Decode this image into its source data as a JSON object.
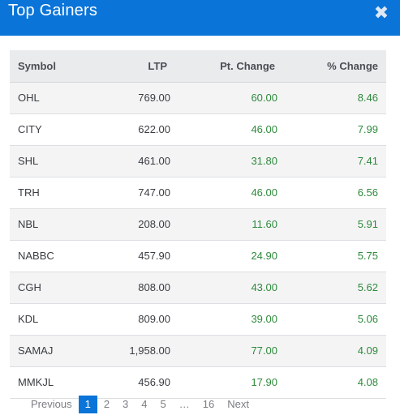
{
  "modal": {
    "title": "Top Gainers",
    "close_glyph": "✖"
  },
  "table": {
    "headers": {
      "symbol": "Symbol",
      "ltp": "LTP",
      "pt_change": "Pt. Change",
      "pct_change": "% Change"
    },
    "rows": [
      {
        "symbol": "OHL",
        "ltp": "769.00",
        "pt_change": "60.00",
        "pct_change": "8.46"
      },
      {
        "symbol": "CITY",
        "ltp": "622.00",
        "pt_change": "46.00",
        "pct_change": "7.99"
      },
      {
        "symbol": "SHL",
        "ltp": "461.00",
        "pt_change": "31.80",
        "pct_change": "7.41"
      },
      {
        "symbol": "TRH",
        "ltp": "747.00",
        "pt_change": "46.00",
        "pct_change": "6.56"
      },
      {
        "symbol": "NBL",
        "ltp": "208.00",
        "pt_change": "11.60",
        "pct_change": "5.91"
      },
      {
        "symbol": "NABBC",
        "ltp": "457.90",
        "pt_change": "24.90",
        "pct_change": "5.75"
      },
      {
        "symbol": "CGH",
        "ltp": "808.00",
        "pt_change": "43.00",
        "pct_change": "5.62"
      },
      {
        "symbol": "KDL",
        "ltp": "809.00",
        "pt_change": "39.00",
        "pct_change": "5.06"
      },
      {
        "symbol": "SAMAJ",
        "ltp": "1,958.00",
        "pt_change": "77.00",
        "pct_change": "4.09"
      },
      {
        "symbol": "MMKJL",
        "ltp": "456.90",
        "pt_change": "17.90",
        "pct_change": "4.08"
      }
    ]
  },
  "pagination": {
    "prev": "Previous",
    "pages": [
      "1",
      "2",
      "3",
      "4",
      "5",
      "…",
      "16"
    ],
    "next": "Next"
  },
  "colors": {
    "header_bg": "#0a74d8",
    "gain_green": "#2f8a3c",
    "head_row_bg": "#eaebed"
  }
}
